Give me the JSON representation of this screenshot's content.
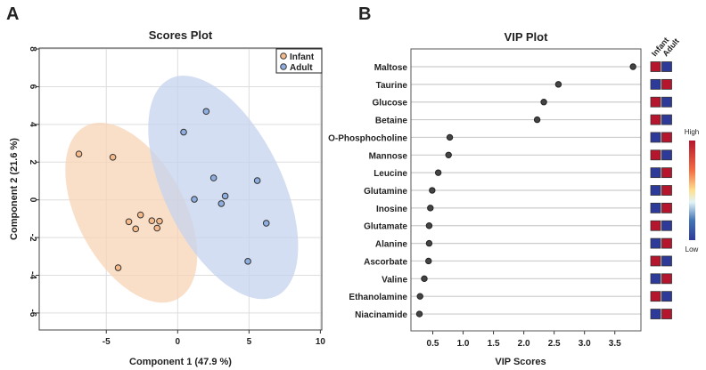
{
  "panels": {
    "a": "A",
    "b": "B"
  },
  "chart_data": [
    {
      "type": "scatter",
      "title": "Scores Plot",
      "xlabel": "Component 1 (47.9 %)",
      "ylabel": "Component 2 (21.6 %)",
      "xlim": [
        -9.7,
        10.1
      ],
      "ylim": [
        -6.9,
        8.05
      ],
      "xticks": [
        -5,
        0,
        5,
        10
      ],
      "yticks": [
        -6,
        -4,
        -2,
        0,
        2,
        4,
        6,
        8
      ],
      "grid": true,
      "legend_position": "top-right",
      "series": [
        {
          "name": "Infant",
          "color": "#f5b98a",
          "ellipse_color": "#f7d3b6",
          "ellipse_center": [
            -3.25,
            -0.68
          ],
          "points": [
            [
              -6.92,
              2.43
            ],
            [
              -4.54,
              2.26
            ],
            [
              -2.6,
              -0.8
            ],
            [
              -3.42,
              -1.16
            ],
            [
              -2.94,
              -1.54
            ],
            [
              -1.81,
              -1.11
            ],
            [
              -1.27,
              -1.13
            ],
            [
              -1.44,
              -1.5
            ],
            [
              -4.17,
              -3.6
            ]
          ]
        },
        {
          "name": "Adult",
          "color": "#8eaee0",
          "ellipse_color": "#c5d3ee",
          "ellipse_center": [
            3.19,
            0.66
          ],
          "points": [
            [
              2.0,
              4.69
            ],
            [
              0.42,
              3.59
            ],
            [
              2.52,
              1.16
            ],
            [
              5.58,
              1.02
            ],
            [
              1.17,
              0.03
            ],
            [
              3.33,
              0.2
            ],
            [
              3.06,
              -0.2
            ],
            [
              6.21,
              -1.24
            ],
            [
              4.92,
              -3.26
            ]
          ]
        }
      ]
    },
    {
      "type": "scatter",
      "title": "VIP Plot",
      "xlabel": "VIP Scores",
      "xlim": [
        0.14,
        3.93
      ],
      "xticks": [
        "0.5",
        "1.0",
        "1.5",
        "2.0",
        "2.5",
        "3.0",
        "3.5"
      ],
      "categories": [
        "Maltose",
        "Taurine",
        "Glucose",
        "Betaine",
        "O-Phosphocholine",
        "Mannose",
        "Leucine",
        "Glutamine",
        "Inosine",
        "Glutamate",
        "Alanine",
        "Ascorbate",
        "Valine",
        "Ethanolamine",
        "Niacinamide"
      ],
      "values": [
        3.8,
        2.57,
        2.33,
        2.22,
        0.78,
        0.76,
        0.59,
        0.49,
        0.46,
        0.44,
        0.44,
        0.43,
        0.36,
        0.29,
        0.28
      ],
      "heatmap": {
        "columns": [
          "Infant",
          "Adult"
        ],
        "levels": [
          [
            "High",
            "Low"
          ],
          [
            "Low",
            "High"
          ],
          [
            "High",
            "Low"
          ],
          [
            "High",
            "Low"
          ],
          [
            "Low",
            "High"
          ],
          [
            "High",
            "Low"
          ],
          [
            "Low",
            "High"
          ],
          [
            "Low",
            "High"
          ],
          [
            "Low",
            "High"
          ],
          [
            "High",
            "Low"
          ],
          [
            "Low",
            "High"
          ],
          [
            "High",
            "Low"
          ],
          [
            "Low",
            "High"
          ],
          [
            "High",
            "Low"
          ],
          [
            "Low",
            "High"
          ]
        ],
        "high_color": "#b5162e",
        "low_color": "#2e3a9a"
      },
      "colorbar": {
        "high": "High",
        "low": "Low"
      }
    }
  ]
}
